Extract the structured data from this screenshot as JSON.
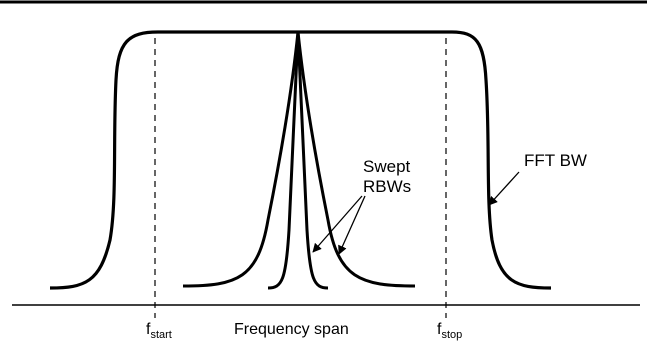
{
  "labels": {
    "swept_line1": "Swept",
    "swept_line2": "RBWs",
    "fft_bw": "FFT BW",
    "f_start_main": "f",
    "f_start_sub": "start",
    "frequency_span": "Frequency span",
    "f_stop_main": "f",
    "f_stop_sub": "stop"
  },
  "colors": {
    "ink": "#000000",
    "background": "#ffffff"
  }
}
